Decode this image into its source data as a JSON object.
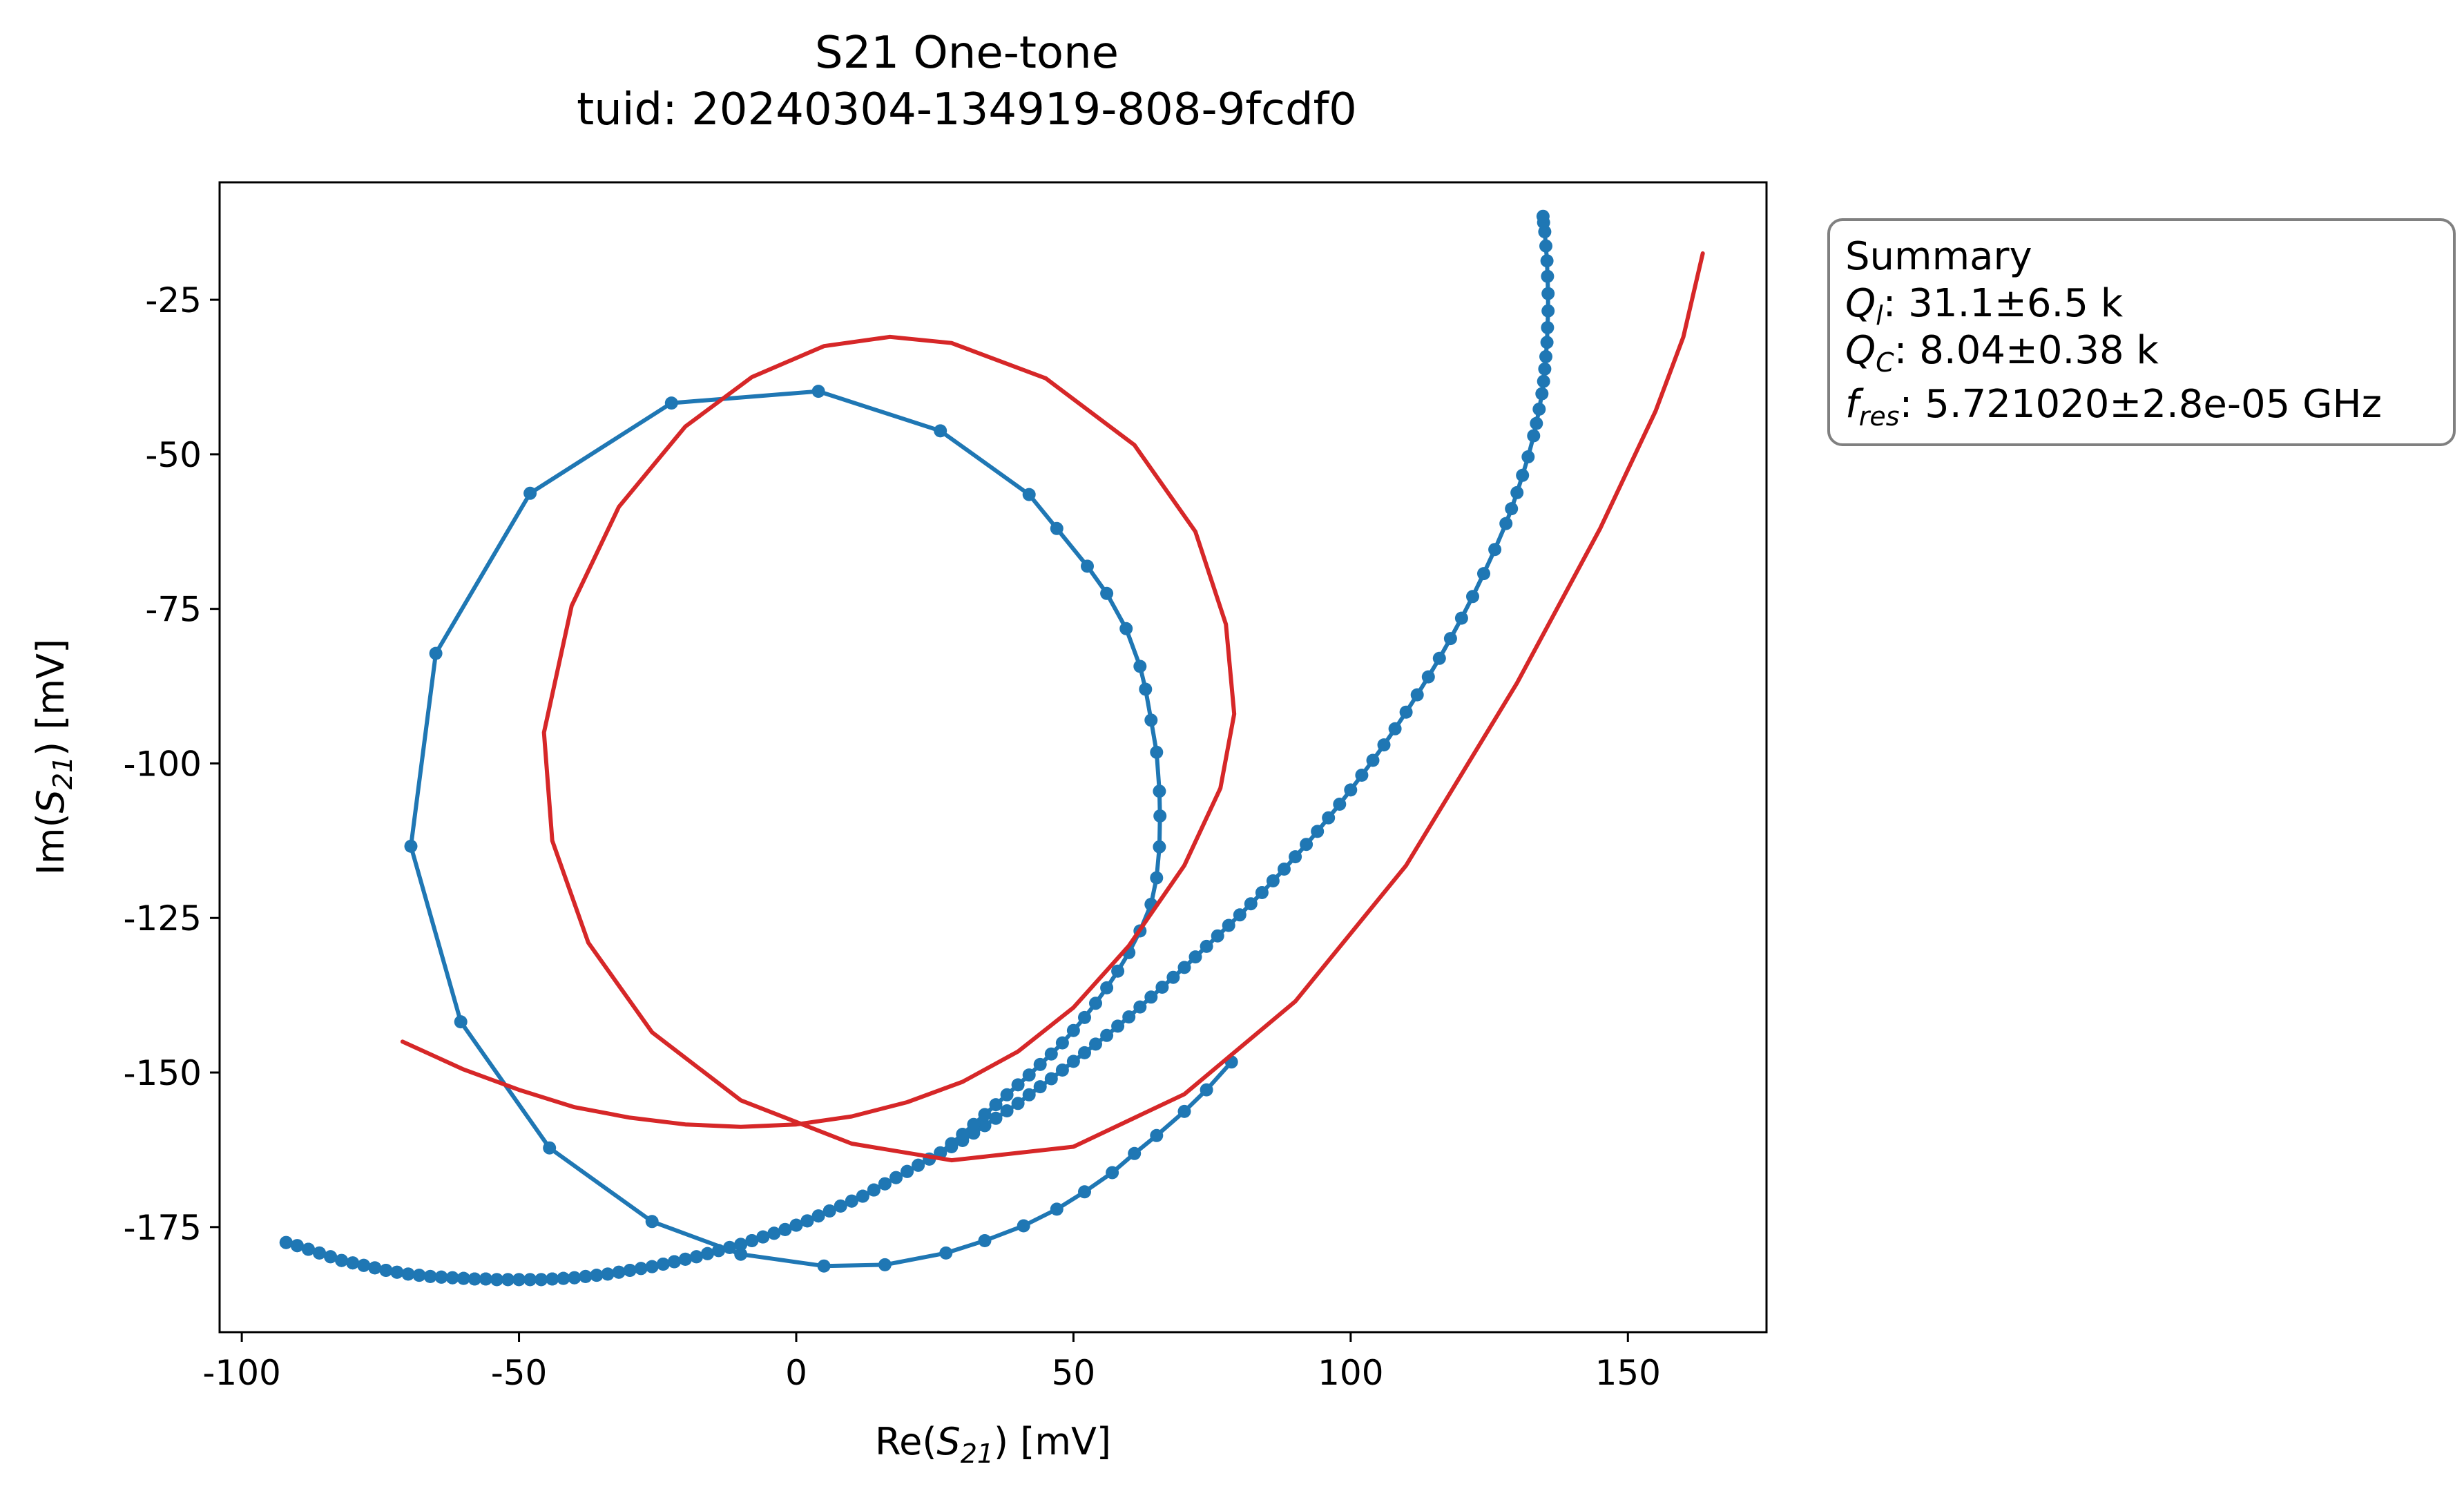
{
  "chart_data": {
    "type": "line",
    "title": "S21 One-tone",
    "subtitle": "tuid: 20240304-134919-808-9fcdf0",
    "xlabel": {
      "base": "Re(",
      "sym": "S",
      "sub": "21",
      "tail": ") [mV]"
    },
    "ylabel": {
      "base": "Im(",
      "sym": "S",
      "sub": "21",
      "tail": ") [mV]"
    },
    "xlim": [
      -104,
      175
    ],
    "ylim": [
      -192,
      -6
    ],
    "xticks": [
      {
        "value": -100,
        "label": "-100"
      },
      {
        "value": -50,
        "label": "-50"
      },
      {
        "value": 0,
        "label": "0"
      },
      {
        "value": 50,
        "label": "50"
      },
      {
        "value": 100,
        "label": "100"
      },
      {
        "value": 150,
        "label": "150"
      }
    ],
    "yticks": [
      {
        "value": -25,
        "label": "-25"
      },
      {
        "value": -50,
        "label": "-50"
      },
      {
        "value": -75,
        "label": "-75"
      },
      {
        "value": -100,
        "label": "-100"
      },
      {
        "value": -125,
        "label": "-125"
      },
      {
        "value": -150,
        "label": "-150"
      },
      {
        "value": -175,
        "label": "-175"
      }
    ],
    "grid": false,
    "legend": "none",
    "summary": {
      "heading": "Summary",
      "lines": [
        {
          "sym": "Q",
          "sub": "l",
          "text": ": 31.1±6.5 k"
        },
        {
          "sym": "Q",
          "sub": "C",
          "text": ": 8.04±0.38 k"
        },
        {
          "sym": "f",
          "sub": "res",
          "text": ": 5.721020±2.8e-05 GHz"
        }
      ],
      "placement": "outside-right-top"
    },
    "series": [
      {
        "kind": "measured",
        "color": "#1f77b4",
        "style": "line-with-markers",
        "points": [
          [
            -92,
            -177.5
          ],
          [
            -90,
            -178
          ],
          [
            -88,
            -178.6
          ],
          [
            -86,
            -179.2
          ],
          [
            -84,
            -179.8
          ],
          [
            -82,
            -180.4
          ],
          [
            -80,
            -180.8
          ],
          [
            -78,
            -181.2
          ],
          [
            -76,
            -181.6
          ],
          [
            -74,
            -182
          ],
          [
            -72,
            -182.3
          ],
          [
            -70,
            -182.6
          ],
          [
            -68,
            -182.8
          ],
          [
            -66,
            -183
          ],
          [
            -64,
            -183.1
          ],
          [
            -62,
            -183.2
          ],
          [
            -60,
            -183.3
          ],
          [
            -58,
            -183.4
          ],
          [
            -56,
            -183.4
          ],
          [
            -54,
            -183.5
          ],
          [
            -52,
            -183.5
          ],
          [
            -50,
            -183.5
          ],
          [
            -48,
            -183.5
          ],
          [
            -46,
            -183.5
          ],
          [
            -44,
            -183.4
          ],
          [
            -42,
            -183.3
          ],
          [
            -40,
            -183.2
          ],
          [
            -38,
            -183
          ],
          [
            -36,
            -182.8
          ],
          [
            -34,
            -182.6
          ],
          [
            -32,
            -182.3
          ],
          [
            -30,
            -182
          ],
          [
            -28,
            -181.7
          ],
          [
            -26,
            -181.4
          ],
          [
            -24,
            -181
          ],
          [
            -22,
            -180.6
          ],
          [
            -20,
            -180.2
          ],
          [
            -18,
            -179.8
          ],
          [
            -16,
            -179.3
          ],
          [
            -14,
            -178.8
          ],
          [
            -12,
            -178.3
          ],
          [
            -10,
            -177.8
          ],
          [
            -8,
            -177.2
          ],
          [
            -6,
            -176.6
          ],
          [
            -4,
            -176
          ],
          [
            -2,
            -175.4
          ],
          [
            0,
            -174.7
          ],
          [
            2,
            -174
          ],
          [
            4,
            -173.2
          ],
          [
            6,
            -172.4
          ],
          [
            8,
            -171.6
          ],
          [
            10,
            -170.8
          ],
          [
            12,
            -170
          ],
          [
            14,
            -169
          ],
          [
            16,
            -168
          ],
          [
            18,
            -167
          ],
          [
            20,
            -166
          ],
          [
            22,
            -165
          ],
          [
            24,
            -164
          ],
          [
            26,
            -163
          ],
          [
            28,
            -162
          ],
          [
            30,
            -161
          ],
          [
            32,
            -159.8
          ],
          [
            34,
            -158.6
          ],
          [
            36,
            -157.4
          ],
          [
            38,
            -156.2
          ],
          [
            40,
            -155
          ],
          [
            42,
            -153.6
          ],
          [
            44,
            -152.3
          ],
          [
            46,
            -151
          ],
          [
            48,
            -149.6
          ],
          [
            50,
            -148.2
          ],
          [
            52,
            -146.8
          ],
          [
            54,
            -145.4
          ],
          [
            56,
            -144
          ],
          [
            58,
            -142.5
          ],
          [
            60,
            -141
          ],
          [
            62,
            -139.4
          ],
          [
            64,
            -137.8
          ],
          [
            66,
            -136.2
          ],
          [
            68,
            -134.6
          ],
          [
            70,
            -133
          ],
          [
            72,
            -131.3
          ],
          [
            74,
            -129.6
          ],
          [
            76,
            -127.9
          ],
          [
            78,
            -126.2
          ],
          [
            80,
            -124.5
          ],
          [
            82,
            -122.7
          ],
          [
            84,
            -120.9
          ],
          [
            86,
            -119
          ],
          [
            88,
            -117.1
          ],
          [
            90,
            -115.1
          ],
          [
            92,
            -113.1
          ],
          [
            94,
            -111
          ],
          [
            96,
            -108.8
          ],
          [
            98,
            -106.6
          ],
          [
            100,
            -104.3
          ],
          [
            102,
            -101.9
          ],
          [
            104,
            -99.5
          ],
          [
            106,
            -97
          ],
          [
            108,
            -94.4
          ],
          [
            110,
            -91.7
          ],
          [
            112,
            -88.9
          ],
          [
            114,
            -86
          ],
          [
            116,
            -83
          ],
          [
            118,
            -79.8
          ],
          [
            120,
            -76.5
          ],
          [
            122,
            -73
          ],
          [
            124,
            -69.3
          ],
          [
            126,
            -65.4
          ],
          [
            128,
            -61.2
          ],
          [
            129,
            -58.8
          ],
          [
            130,
            -56.2
          ],
          [
            131,
            -53.4
          ],
          [
            132,
            -50.4
          ],
          [
            133,
            -47
          ],
          [
            133.5,
            -45
          ],
          [
            134,
            -42.7
          ],
          [
            134.5,
            -40.2
          ],
          [
            134.8,
            -38.2
          ],
          [
            135,
            -36.2
          ],
          [
            135.2,
            -34.2
          ],
          [
            135.4,
            -31.9
          ],
          [
            135.5,
            -29.5
          ],
          [
            135.6,
            -26.8
          ],
          [
            135.6,
            -24
          ],
          [
            135.5,
            -21.2
          ],
          [
            135.4,
            -18.7
          ],
          [
            135.2,
            -16.3
          ],
          [
            135,
            -14
          ],
          [
            134.8,
            -12.5
          ],
          [
            134.7,
            -11.5
          ]
        ]
      },
      {
        "kind": "measured",
        "color": "#1f77b4",
        "style": "line-with-markers",
        "points": [
          [
            -92,
            -177.5
          ],
          [
            -90,
            -178
          ],
          [
            -88,
            -178.6
          ],
          [
            -86,
            -179.2
          ],
          [
            -84,
            -179.8
          ],
          [
            -82,
            -180.4
          ],
          [
            -80,
            -180.8
          ],
          [
            -78,
            -181.2
          ],
          [
            -76,
            -181.6
          ],
          [
            -74,
            -182
          ],
          [
            -72,
            -182.3
          ],
          [
            -70,
            -182.6
          ],
          [
            -68,
            -182.8
          ],
          [
            -66,
            -183
          ],
          [
            -64,
            -183.1
          ],
          [
            -62,
            -183.2
          ],
          [
            -60,
            -183.3
          ],
          [
            -58,
            -183.4
          ],
          [
            -56,
            -183.4
          ],
          [
            -54,
            -183.5
          ],
          [
            -52,
            -183.5
          ],
          [
            -50,
            -183.5
          ],
          [
            -48,
            -183.5
          ],
          [
            -46,
            -183.5
          ],
          [
            -44,
            -183.4
          ],
          [
            -42,
            -183.3
          ],
          [
            -40,
            -183.2
          ],
          [
            -38,
            -183
          ],
          [
            -36,
            -182.8
          ],
          [
            -34,
            -182.6
          ],
          [
            -32,
            -182.3
          ],
          [
            -30,
            -182
          ],
          [
            -28,
            -181.7
          ],
          [
            -26,
            -181.4
          ],
          [
            -24,
            -181
          ],
          [
            -22,
            -180.6
          ],
          [
            -20,
            -180.2
          ],
          [
            -18,
            -179.8
          ],
          [
            -16,
            -179.3
          ],
          [
            -14,
            -178.8
          ],
          [
            -12,
            -178.3
          ],
          [
            -10,
            -177.8
          ],
          [
            -8,
            -177.2
          ],
          [
            -6,
            -176.6
          ],
          [
            -4,
            -176
          ],
          [
            -2,
            -175.4
          ],
          [
            0,
            -174.7
          ],
          [
            2,
            -174
          ],
          [
            4,
            -173.2
          ],
          [
            6,
            -172.4
          ],
          [
            8,
            -171.6
          ],
          [
            10,
            -170.8
          ],
          [
            12,
            -170
          ],
          [
            14,
            -169
          ],
          [
            16,
            -168
          ],
          [
            18,
            -167
          ],
          [
            20,
            -166
          ],
          [
            22,
            -165
          ],
          [
            24,
            -164
          ],
          [
            26,
            -163
          ],
          [
            28,
            -161.5
          ],
          [
            30,
            -160
          ],
          [
            32,
            -158.4
          ],
          [
            34,
            -156.8
          ],
          [
            36,
            -155.2
          ],
          [
            38,
            -153.6
          ],
          [
            40,
            -152
          ],
          [
            42,
            -150.4
          ],
          [
            44,
            -148.7
          ],
          [
            46,
            -147
          ],
          [
            48,
            -145.2
          ],
          [
            50,
            -143.2
          ],
          [
            52,
            -141.1
          ],
          [
            54,
            -138.8
          ],
          [
            56,
            -136.3
          ],
          [
            58,
            -133.6
          ],
          [
            60,
            -130.6
          ],
          [
            62,
            -127.1
          ],
          [
            64,
            -122.8
          ],
          [
            65,
            -118.5
          ],
          [
            65.5,
            -113.5
          ],
          [
            65.6,
            -108.5
          ],
          [
            65.5,
            -104.5
          ],
          [
            65,
            -98.2
          ],
          [
            64,
            -93
          ],
          [
            63,
            -88
          ],
          [
            62,
            -84.3
          ],
          [
            59.5,
            -78.2
          ],
          [
            56,
            -72.5
          ],
          [
            52.5,
            -68.1
          ],
          [
            47,
            -62
          ],
          [
            42,
            -56.5
          ],
          [
            26,
            -46.2
          ],
          [
            4,
            -39.8
          ],
          [
            -22.5,
            -41.7
          ],
          [
            -48,
            -56.3
          ],
          [
            -65,
            -82.2
          ],
          [
            -69.5,
            -113.4
          ],
          [
            -60.5,
            -141.8
          ],
          [
            -44.5,
            -162.2
          ],
          [
            -26,
            -174.1
          ],
          [
            -10,
            -179.4
          ],
          [
            5,
            -181.3
          ],
          [
            16,
            -181.1
          ],
          [
            27,
            -179.2
          ],
          [
            34,
            -177.2
          ],
          [
            41,
            -174.8
          ],
          [
            47,
            -172.1
          ],
          [
            52,
            -169.3
          ],
          [
            57,
            -166.2
          ],
          [
            61,
            -163.1
          ],
          [
            65,
            -160.2
          ],
          [
            70,
            -156.3
          ],
          [
            74,
            -152.8
          ],
          [
            78.5,
            -148.3
          ]
        ]
      }
    ],
    "fit": {
      "kind": "fit",
      "color": "#d62728",
      "style": "line",
      "points": [
        [
          -71,
          -145
        ],
        [
          -60,
          -149.5
        ],
        [
          -50,
          -152.8
        ],
        [
          -40,
          -155.6
        ],
        [
          -30,
          -157.3
        ],
        [
          -20,
          -158.4
        ],
        [
          -10,
          -158.8
        ],
        [
          0,
          -158.4
        ],
        [
          10,
          -157.1
        ],
        [
          20,
          -154.8
        ],
        [
          30,
          -151.5
        ],
        [
          40,
          -146.6
        ],
        [
          50,
          -139.5
        ],
        [
          60,
          -129.5
        ],
        [
          70,
          -116.5
        ],
        [
          76.5,
          -104
        ],
        [
          79,
          -92
        ],
        [
          77.5,
          -77.5
        ],
        [
          72,
          -62.5
        ],
        [
          61,
          -48.5
        ],
        [
          45,
          -37.7
        ],
        [
          28,
          -32
        ],
        [
          16.9,
          -31
        ],
        [
          5,
          -32.5
        ],
        [
          -8,
          -37.5
        ],
        [
          -20,
          -45.5
        ],
        [
          -32,
          -58.5
        ],
        [
          -40.5,
          -74.5
        ],
        [
          -45.5,
          -95
        ],
        [
          -44,
          -112.5
        ],
        [
          -37.5,
          -129
        ],
        [
          -26,
          -143.5
        ],
        [
          -10,
          -154.5
        ],
        [
          10,
          -161.5
        ],
        [
          28,
          -164.2
        ],
        [
          50,
          -162
        ],
        [
          70,
          -153.5
        ],
        [
          90,
          -138.5
        ],
        [
          110,
          -116.5
        ],
        [
          130,
          -87
        ],
        [
          145,
          -62
        ],
        [
          155,
          -43
        ],
        [
          160,
          -31
        ],
        [
          163.5,
          -17.5
        ]
      ]
    }
  }
}
